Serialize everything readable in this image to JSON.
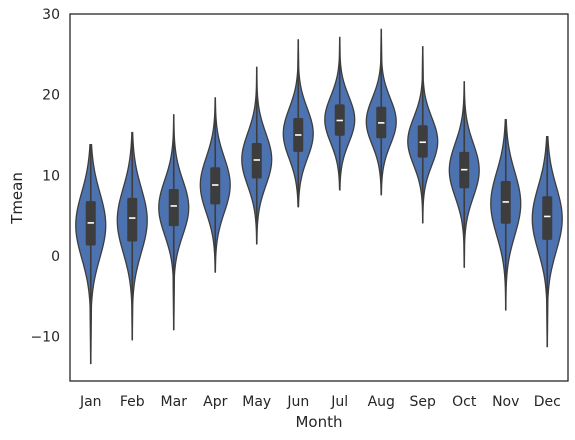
{
  "chart_data": {
    "type": "violin",
    "title": "",
    "xlabel": "Month",
    "ylabel": "Tmean",
    "ylim": [
      -15.5,
      30
    ],
    "yticks": [
      -10,
      0,
      10,
      20,
      30
    ],
    "grid": false,
    "legend": "none",
    "colors": {
      "violin_fill": "#4c72b0",
      "edge": "#3d3d3d",
      "box": "#3d3d3d",
      "median": "#ffffff",
      "frame": "#262626",
      "text": "#262626"
    },
    "categories": [
      "Jan",
      "Feb",
      "Mar",
      "Apr",
      "May",
      "Jun",
      "Jul",
      "Aug",
      "Sep",
      "Oct",
      "Nov",
      "Dec"
    ],
    "series": [
      {
        "values": [
          {
            "min": -13.4,
            "q1": 1.3,
            "median": 4.1,
            "q3": 6.8,
            "max": 13.8
          },
          {
            "min": -10.4,
            "q1": 1.8,
            "median": 4.7,
            "q3": 7.2,
            "max": 15.3
          },
          {
            "min": -9.2,
            "q1": 3.7,
            "median": 6.2,
            "q3": 8.3,
            "max": 17.5
          },
          {
            "min": -2.0,
            "q1": 6.4,
            "median": 8.8,
            "q3": 11.0,
            "max": 19.6
          },
          {
            "min": 1.5,
            "q1": 9.6,
            "median": 11.9,
            "q3": 14.0,
            "max": 23.4
          },
          {
            "min": 6.1,
            "q1": 12.9,
            "median": 15.0,
            "q3": 17.1,
            "max": 26.8
          },
          {
            "min": 8.2,
            "q1": 14.9,
            "median": 16.8,
            "q3": 18.8,
            "max": 27.1
          },
          {
            "min": 7.6,
            "q1": 14.6,
            "median": 16.5,
            "q3": 18.5,
            "max": 28.1
          },
          {
            "min": 4.1,
            "q1": 12.2,
            "median": 14.1,
            "q3": 16.2,
            "max": 26.0
          },
          {
            "min": -1.4,
            "q1": 8.4,
            "median": 10.7,
            "q3": 12.9,
            "max": 21.6
          },
          {
            "min": -6.7,
            "q1": 4.0,
            "median": 6.7,
            "q3": 9.3,
            "max": 16.9
          },
          {
            "min": -11.3,
            "q1": 2.0,
            "median": 4.9,
            "q3": 7.4,
            "max": 14.8
          }
        ]
      }
    ]
  }
}
